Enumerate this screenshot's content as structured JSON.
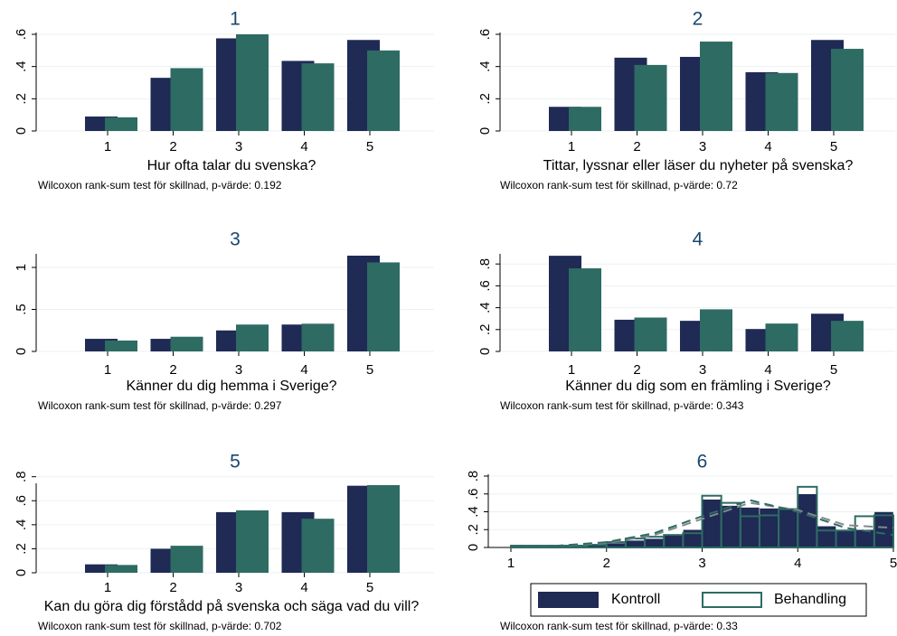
{
  "chart_data": [
    {
      "type": "bar",
      "title": "1",
      "xlabel": "Hur ofta talar du svenska?",
      "note": "Wilcoxon rank-sum test för skillnad, p-värde: 0.192",
      "categories": [
        "1",
        "2",
        "3",
        "4",
        "5"
      ],
      "series": [
        {
          "name": "Kontroll",
          "color": "#1f2a55",
          "values": [
            0.09,
            0.33,
            0.575,
            0.435,
            0.565
          ]
        },
        {
          "name": "Behandling",
          "color": "#2e6b63",
          "values": [
            0.085,
            0.39,
            0.6,
            0.42,
            0.5
          ]
        }
      ],
      "ylim": [
        0,
        0.6
      ],
      "yticks": [
        0,
        {
          "value": 0.2,
          "label": ".2"
        },
        {
          "value": 0.4,
          "label": ".4"
        },
        {
          "value": 0.6,
          "label": ".6"
        }
      ],
      "grid": true
    },
    {
      "type": "bar",
      "title": "2",
      "xlabel": "Tittar, lyssnar eller läser du nyheter på svenska?",
      "note": "Wilcoxon rank-sum test för skillnad, p-värde: 0.72",
      "categories": [
        "1",
        "2",
        "3",
        "4",
        "5"
      ],
      "series": [
        {
          "name": "Kontroll",
          "color": "#1f2a55",
          "values": [
            0.15,
            0.455,
            0.46,
            0.365,
            0.565
          ]
        },
        {
          "name": "Behandling",
          "color": "#2e6b63",
          "values": [
            0.15,
            0.41,
            0.555,
            0.36,
            0.51
          ]
        }
      ],
      "ylim": [
        0,
        0.6
      ],
      "yticks": [
        0,
        {
          "value": 0.2,
          "label": ".2"
        },
        {
          "value": 0.4,
          "label": ".4"
        },
        {
          "value": 0.6,
          "label": ".6"
        }
      ],
      "grid": true
    },
    {
      "type": "bar",
      "title": "3",
      "xlabel": "Känner du dig hemma i Sverige?",
      "note": "Wilcoxon rank-sum test för skillnad, p-värde: 0.297",
      "categories": [
        "1",
        "2",
        "3",
        "4",
        "5"
      ],
      "series": [
        {
          "name": "Kontroll",
          "color": "#1f2a55",
          "values": [
            0.15,
            0.15,
            0.25,
            0.32,
            1.14
          ]
        },
        {
          "name": "Behandling",
          "color": "#2e6b63",
          "values": [
            0.13,
            0.175,
            0.32,
            0.33,
            1.06
          ]
        }
      ],
      "ylim": [
        0,
        1.14
      ],
      "yticks": [
        0,
        {
          "value": 0.5,
          "label": ".5"
        },
        1
      ],
      "grid": true
    },
    {
      "type": "bar",
      "title": "4",
      "xlabel": "Känner du dig som en främling i Sverige?",
      "note": "Wilcoxon rank-sum test för skillnad, p-värde: 0.343",
      "categories": [
        "1",
        "2",
        "3",
        "4",
        "5"
      ],
      "series": [
        {
          "name": "Kontroll",
          "color": "#1f2a55",
          "values": [
            0.875,
            0.29,
            0.28,
            0.205,
            0.345
          ]
        },
        {
          "name": "Behandling",
          "color": "#2e6b63",
          "values": [
            0.76,
            0.31,
            0.385,
            0.255,
            0.28
          ]
        }
      ],
      "ylim": [
        0,
        0.876
      ],
      "yticks": [
        0,
        {
          "value": 0.2,
          "label": ".2"
        },
        {
          "value": 0.4,
          "label": ".4"
        },
        {
          "value": 0.6,
          "label": ".6"
        },
        {
          "value": 0.8,
          "label": ".8"
        }
      ],
      "grid": true
    },
    {
      "type": "bar",
      "title": "5",
      "xlabel": "Kan du göra dig förstådd på svenska och säga vad du vill?",
      "note": "Wilcoxon rank-sum test för skillnad, p-värde: 0.702",
      "categories": [
        "1",
        "2",
        "3",
        "4",
        "5"
      ],
      "series": [
        {
          "name": "Kontroll",
          "color": "#1f2a55",
          "values": [
            0.07,
            0.2,
            0.505,
            0.505,
            0.725
          ]
        },
        {
          "name": "Behandling",
          "color": "#2e6b63",
          "values": [
            0.065,
            0.225,
            0.52,
            0.45,
            0.73
          ]
        }
      ],
      "ylim": [
        0,
        0.73
      ],
      "yticks": [
        0,
        {
          "value": 0.2,
          "label": ".2"
        },
        {
          "value": 0.4,
          "label": ".4"
        },
        {
          "value": 0.6,
          "label": ".6"
        },
        {
          "value": 0.8,
          "label": ".8"
        }
      ],
      "grid": true
    },
    {
      "type": "histogram",
      "title": "6",
      "note": "Wilcoxon rank-sum test för skillnad, p-värde: 0.33",
      "bins": [
        1,
        1.2,
        1.4,
        1.6,
        1.8,
        2,
        2.2,
        2.4,
        2.6,
        2.8,
        3,
        3.2,
        3.4,
        3.6,
        3.8,
        4,
        4.2,
        4.4,
        4.6,
        4.8,
        5
      ],
      "series": [
        {
          "name": "Kontroll",
          "color": "#1f2a55",
          "values": [
            0.02,
            0.02,
            0.02,
            0.03,
            0.03,
            0.05,
            0.08,
            0.1,
            0.15,
            0.2,
            0.54,
            0.47,
            0.45,
            0.44,
            0.43,
            0.6,
            0.24,
            0.2,
            0.2,
            0.4
          ]
        },
        {
          "name": "Behandling",
          "color": "#2e6b63",
          "values": [
            0.02,
            0.02,
            0.02,
            0.02,
            0.03,
            0.06,
            0.1,
            0.12,
            0.14,
            0.16,
            0.58,
            0.5,
            0.35,
            0.36,
            0.43,
            0.68,
            0.19,
            0.19,
            0.35,
            0.36
          ]
        }
      ],
      "lines": [
        {
          "color": "#7f8a8a",
          "x": [
            1,
            1.5,
            2,
            2.5,
            3,
            3.5,
            4,
            4.5,
            5
          ],
          "values": [
            0.01,
            0.02,
            0.05,
            0.14,
            0.32,
            0.5,
            0.42,
            0.25,
            0.22
          ]
        },
        {
          "color": "#2e6b63",
          "x": [
            1,
            1.5,
            2,
            2.5,
            3,
            3.5,
            4,
            4.5,
            5
          ],
          "values": [
            0.01,
            0.02,
            0.06,
            0.16,
            0.35,
            0.53,
            0.4,
            0.22,
            0.14
          ]
        }
      ],
      "xlim": [
        1,
        5
      ],
      "xticks": [
        1,
        2,
        3,
        4,
        5
      ],
      "ylim": [
        0,
        0.8
      ],
      "yticks": [
        0,
        {
          "value": 0.2,
          "label": ".2"
        },
        {
          "value": 0.4,
          "label": ".4"
        },
        {
          "value": 0.6,
          "label": ".6"
        },
        {
          "value": 0.8,
          "label": ".8"
        }
      ],
      "grid": true
    }
  ]
}
